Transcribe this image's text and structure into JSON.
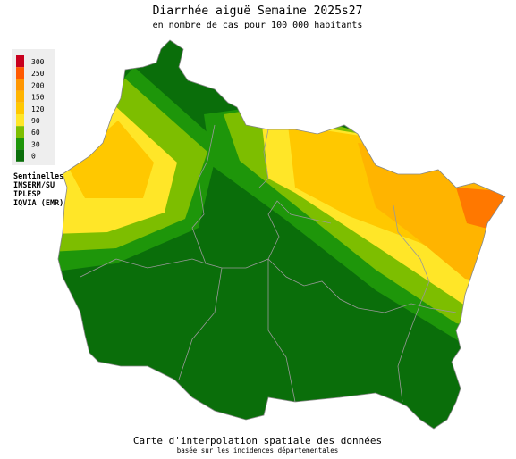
{
  "header": {
    "title": "Diarrhée aiguë Semaine 2025s27",
    "subtitle": "en nombre de cas pour 100 000 habitants"
  },
  "legend": {
    "items": [
      {
        "value": 300,
        "color": "#c8001e"
      },
      {
        "value": 250,
        "color": "#ff5a00"
      },
      {
        "value": 200,
        "color": "#ff9600"
      },
      {
        "value": 150,
        "color": "#ffb400"
      },
      {
        "value": 120,
        "color": "#ffc800"
      },
      {
        "value": 90,
        "color": "#ffe628"
      },
      {
        "value": 60,
        "color": "#7dbe00"
      },
      {
        "value": 30,
        "color": "#1e960a"
      },
      {
        "value": 0,
        "color": "#0a6e0a"
      }
    ]
  },
  "sources": [
    "Sentinelles",
    "INSERM/SU",
    "IPLESP",
    "IQVIA (EMR)"
  ],
  "footer": {
    "line1": "Carte d'interpolation spatiale des données",
    "line2": "basée sur les incidences départementales"
  }
}
